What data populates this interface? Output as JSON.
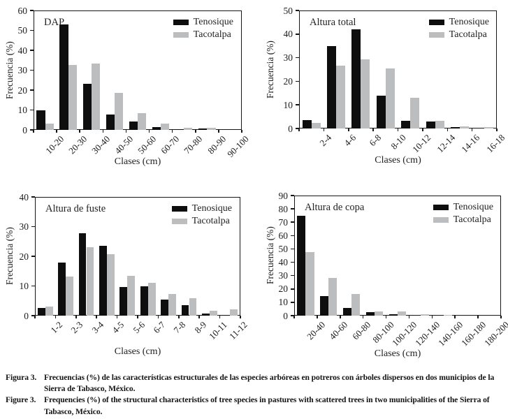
{
  "figure": {
    "caption": {
      "es_label": "Figura 3.",
      "es_text": "Frecuencias (%) de las características estructurales de las especies arbóreas en potreros con árboles dispersos en dos municipios de la Sierra de Tabasco, México.",
      "en_label": "Figure 3.",
      "en_text": "Frequencies (%) of the structural characteristics of tree species in pastures with scattered trees in two municipalities of the Sierra of Tabasco, México."
    }
  },
  "colors": {
    "tenosique": "#0e0e0e",
    "tacotalpa": "#bcbdbf",
    "axis": "#161616"
  },
  "legend": {
    "items": [
      {
        "label": "Tenosique",
        "color": "#0e0e0e"
      },
      {
        "label": "Tacotalpa",
        "color": "#bcbdbf"
      }
    ],
    "position": "top-right-inside"
  },
  "chart_data": [
    {
      "type": "bar",
      "title": "DAP",
      "xlabel": "Clases (cm)",
      "ylabel": "Frecuencia (%)",
      "ylim": [
        0,
        60
      ],
      "ytick_step": 10,
      "grid": false,
      "categories": [
        "10-20",
        "20-30",
        "30-40",
        "40-50",
        "50-60",
        "60-70",
        "70-80",
        "80-90",
        "90-100"
      ],
      "series": [
        {
          "name": "Tenosique",
          "color": "#0e0e0e",
          "values": [
            10,
            53,
            23,
            7.7,
            4.2,
            1.5,
            0.4,
            0.8,
            0
          ]
        },
        {
          "name": "Tacotalpa",
          "color": "#bcbdbf",
          "values": [
            3.3,
            32.5,
            33.3,
            18.5,
            8.4,
            3.3,
            1.2,
            1.2,
            0
          ]
        }
      ]
    },
    {
      "type": "bar",
      "title": "Altura total",
      "xlabel": "Clases (cm)",
      "ylabel": "Frecuencia (%)",
      "ylim": [
        0,
        50
      ],
      "ytick_step": 10,
      "grid": false,
      "categories": [
        "2-4",
        "4-6",
        "6-8",
        "8-10",
        "10-12",
        "12-14",
        "14-16",
        "16-18"
      ],
      "series": [
        {
          "name": "Tenosique",
          "color": "#0e0e0e",
          "values": [
            3.6,
            35,
            42,
            14,
            3.3,
            3,
            0.7,
            0
          ]
        },
        {
          "name": "Tacotalpa",
          "color": "#bcbdbf",
          "values": [
            2.4,
            26.5,
            29.3,
            25.4,
            13,
            3.3,
            1,
            0.7
          ]
        }
      ]
    },
    {
      "type": "bar",
      "title": "Altura de fuste",
      "xlabel": "Clases (cm)",
      "ylabel": "Frecuencia (%)",
      "ylim": [
        0,
        40
      ],
      "ytick_step": 10,
      "grid": false,
      "categories": [
        "1-2",
        "2-3",
        "3-4",
        "4-5",
        "5-6",
        "6-7",
        "7-8",
        "8-9",
        "10-11",
        "11-12"
      ],
      "series": [
        {
          "name": "Tenosique",
          "color": "#0e0e0e",
          "values": [
            2.7,
            17.8,
            27.8,
            23.6,
            9.6,
            9.8,
            5.3,
            3.5,
            0.8,
            0.3
          ]
        },
        {
          "name": "Tacotalpa",
          "color": "#bcbdbf",
          "values": [
            3,
            13.1,
            23,
            20.8,
            13.5,
            11,
            7.2,
            5.8,
            1.7,
            2.2
          ]
        }
      ]
    },
    {
      "type": "bar",
      "title": "Altura de copa",
      "xlabel": "Clases (cm)",
      "ylabel": "Frecuencia (%)",
      "ylim": [
        0,
        90
      ],
      "ytick_step": 10,
      "grid": false,
      "categories": [
        "20-40",
        "40-60",
        "60-80",
        "80-100",
        "100-120",
        "120-140",
        "140-160",
        "160-180",
        "180-200"
      ],
      "series": [
        {
          "name": "Tenosique",
          "color": "#0e0e0e",
          "values": [
            75,
            14.5,
            6,
            2.5,
            0.8,
            0,
            0,
            0,
            0
          ]
        },
        {
          "name": "Tacotalpa",
          "color": "#bcbdbf",
          "values": [
            47.5,
            28,
            16,
            3.3,
            3.3,
            0.8,
            0.3,
            0,
            0
          ]
        }
      ]
    }
  ]
}
